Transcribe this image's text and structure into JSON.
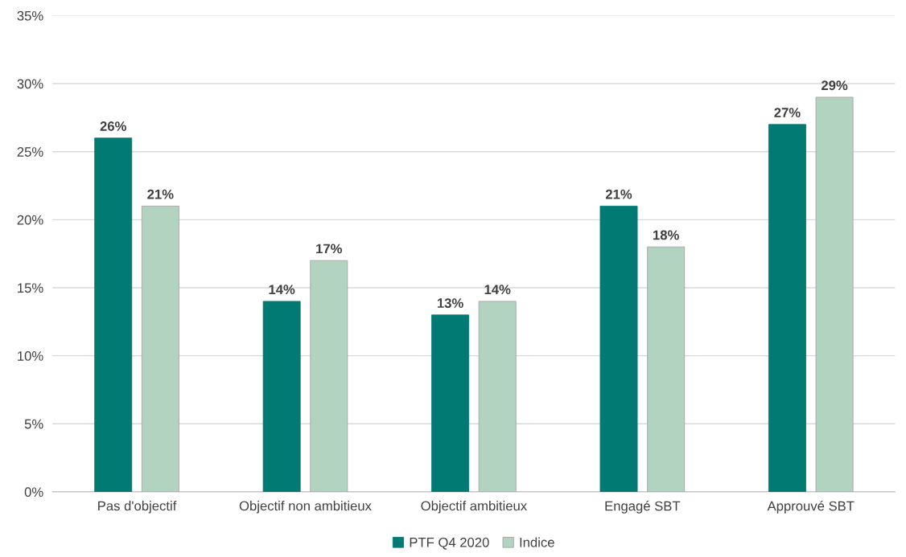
{
  "chart_data": {
    "type": "bar",
    "categories": [
      "Pas d'objectif",
      "Objectif non ambitieux",
      "Objectif ambitieux",
      "Engagé SBT",
      "Approuvé SBT"
    ],
    "series": [
      {
        "name": "PTF Q4 2020",
        "color": "#007a73",
        "values": [
          26,
          14,
          13,
          21,
          27
        ],
        "value_labels": [
          "26%",
          "14%",
          "13%",
          "21%",
          "27%"
        ]
      },
      {
        "name": "Indice",
        "color": "#b3d3c1",
        "values": [
          21,
          17,
          14,
          18,
          29
        ],
        "value_labels": [
          "21%",
          "17%",
          "14%",
          "18%",
          "29%"
        ]
      }
    ],
    "ylim": [
      0,
      35
    ],
    "yticks": [
      {
        "value": 0,
        "label": "0%"
      },
      {
        "value": 5,
        "label": "5%"
      },
      {
        "value": 10,
        "label": "10%"
      },
      {
        "value": 15,
        "label": "15%"
      },
      {
        "value": 20,
        "label": "20%"
      },
      {
        "value": 25,
        "label": "25%"
      },
      {
        "value": 30,
        "label": "30%"
      },
      {
        "value": 35,
        "label": "35%"
      }
    ],
    "grid": "y",
    "legend": "bottom"
  }
}
